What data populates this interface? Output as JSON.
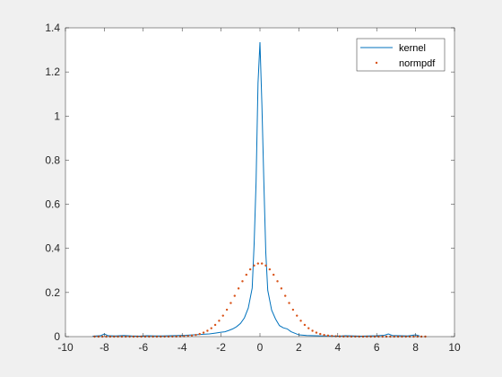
{
  "chart_data": {
    "type": "line",
    "title": "",
    "xlabel": "",
    "ylabel": "",
    "xlim": [
      -10,
      10
    ],
    "ylim": [
      0,
      1.4
    ],
    "xticks": [
      -10,
      -8,
      -6,
      -4,
      -2,
      0,
      2,
      4,
      6,
      8,
      10
    ],
    "yticks": [
      0,
      0.2,
      0.4,
      0.6,
      0.8,
      1,
      1.2,
      1.4
    ],
    "xtick_labels": [
      "-10",
      "-8",
      "-6",
      "-4",
      "-2",
      "0",
      "2",
      "4",
      "6",
      "8",
      "10"
    ],
    "ytick_labels": [
      "0",
      "0.2",
      "0.4",
      "0.6",
      "0.8",
      "1",
      "1.2",
      "1.4"
    ],
    "grid": false,
    "legend_position": "top-right",
    "series": [
      {
        "name": "kernel",
        "style": "line",
        "color": "#0072BD",
        "x": [
          -8.6,
          -8.2,
          -8.0,
          -7.8,
          -7.4,
          -7.0,
          -6.6,
          -6.2,
          -5.8,
          -5.4,
          -5.0,
          -4.6,
          -4.2,
          -3.8,
          -3.4,
          -3.0,
          -2.6,
          -2.3,
          -2.0,
          -1.8,
          -1.6,
          -1.4,
          -1.2,
          -1.0,
          -0.8,
          -0.6,
          -0.4,
          -0.3,
          -0.2,
          -0.1,
          0.0,
          0.1,
          0.2,
          0.3,
          0.4,
          0.6,
          0.8,
          1.0,
          1.2,
          1.4,
          1.6,
          1.8,
          2.0,
          2.4,
          2.8,
          3.2,
          3.6,
          4.0,
          4.4,
          4.8,
          5.2,
          5.6,
          6.0,
          6.4,
          6.6,
          6.8,
          7.2,
          7.6,
          8.0,
          8.2
        ],
        "y": [
          0.002,
          0.004,
          0.012,
          0.004,
          0.003,
          0.005,
          0.003,
          0.002,
          0.004,
          0.003,
          0.003,
          0.004,
          0.005,
          0.006,
          0.008,
          0.01,
          0.012,
          0.016,
          0.02,
          0.022,
          0.028,
          0.035,
          0.045,
          0.06,
          0.085,
          0.13,
          0.22,
          0.42,
          0.7,
          1.15,
          1.335,
          1.05,
          0.7,
          0.38,
          0.21,
          0.12,
          0.08,
          0.05,
          0.04,
          0.035,
          0.022,
          0.015,
          0.008,
          0.005,
          0.004,
          0.003,
          0.003,
          0.002,
          0.004,
          0.003,
          0.002,
          0.003,
          0.004,
          0.006,
          0.012,
          0.005,
          0.004,
          0.003,
          0.008,
          0.003
        ]
      },
      {
        "name": "normpdf",
        "style": "dots",
        "color": "#D95319",
        "mu": 0,
        "sigma": 1.2,
        "x_start": -8.5,
        "x_end": 8.5,
        "x_step": 0.2
      }
    ]
  }
}
